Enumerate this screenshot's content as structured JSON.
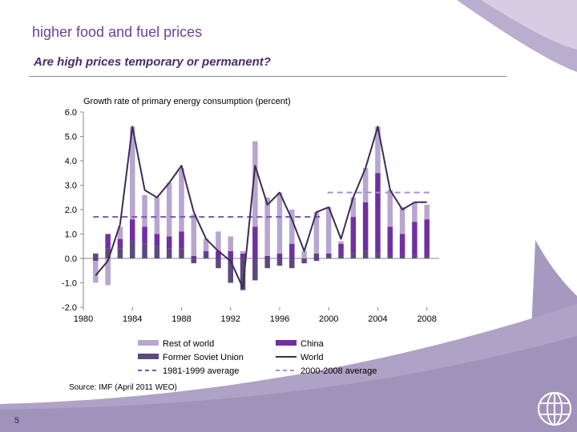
{
  "slide": {
    "title": "higher food and fuel prices",
    "subtitle": "Are high prices temporary or permanent?",
    "source": "Source: IMF (April 2011 WEO)",
    "page_number": "5",
    "logo_icon": "world-bank-globe-icon"
  },
  "colors": {
    "title": "#6e3f97",
    "rest_of_world": "#b7a6cf",
    "china": "#7030a0",
    "former_soviet_union": "#5c4a7a",
    "world": "#3d2b55",
    "avg_1981_1999": "#7b54b0",
    "avg_2000_2008": "#a88fd0",
    "decor": "#a698bf"
  },
  "chart_data": {
    "type": "bar",
    "title": "Growth rate of primary energy consumption (percent)",
    "ylim": [
      -2.0,
      6.0
    ],
    "yticks": [
      "6.0",
      "5.0",
      "4.0",
      "3.0",
      "2.0",
      "1.0",
      "0.0",
      "-1.0",
      "-2.0"
    ],
    "xticks": [
      "1980",
      "1984",
      "1988",
      "1992",
      "1996",
      "2000",
      "2004",
      "2008"
    ],
    "x": [
      1981,
      1982,
      1983,
      1984,
      1985,
      1986,
      1987,
      1988,
      1989,
      1990,
      1991,
      1992,
      1993,
      1994,
      1995,
      1996,
      1997,
      1998,
      1999,
      2000,
      2001,
      2002,
      2003,
      2004,
      2005,
      2006,
      2007,
      2008
    ],
    "series": [
      {
        "name": "Former Soviet Union",
        "kind": "bar",
        "values": [
          0.2,
          0.4,
          0.4,
          0.7,
          0.6,
          0.5,
          0.4,
          0.4,
          -0.2,
          0.2,
          -0.4,
          -1.0,
          -1.3,
          -0.9,
          -0.4,
          -0.3,
          -0.4,
          -0.1,
          0.2,
          0.1,
          0.1,
          0.2,
          0.3,
          0.2,
          0.1,
          0.1,
          0.1,
          0.1
        ]
      },
      {
        "name": "China",
        "kind": "bar",
        "values": [
          -0.1,
          0.6,
          0.4,
          0.9,
          0.7,
          0.5,
          0.5,
          0.7,
          0.1,
          0.1,
          0.3,
          0.3,
          0.2,
          1.3,
          0.1,
          0.2,
          0.6,
          -0.1,
          -0.1,
          0.1,
          0.5,
          1.5,
          2.0,
          3.3,
          1.2,
          0.9,
          1.4,
          1.5
        ]
      },
      {
        "name": "Rest of world",
        "kind": "bar",
        "values": [
          -0.9,
          -1.1,
          0.5,
          3.8,
          1.3,
          1.5,
          2.2,
          2.6,
          1.7,
          0.5,
          0.8,
          0.6,
          0.1,
          3.5,
          2.4,
          2.5,
          1.4,
          0.3,
          1.7,
          1.9,
          0.1,
          0.8,
          1.4,
          1.9,
          1.5,
          1.1,
          0.8,
          0.6
        ]
      },
      {
        "name": "World",
        "kind": "line",
        "values": [
          -0.7,
          -0.1,
          1.4,
          5.4,
          2.8,
          2.5,
          3.1,
          3.8,
          1.9,
          0.8,
          0.3,
          -0.1,
          -1.2,
          3.8,
          2.2,
          2.7,
          1.6,
          0.3,
          1.9,
          2.1,
          0.8,
          2.5,
          3.7,
          5.4,
          2.8,
          2.0,
          2.3,
          2.3
        ]
      },
      {
        "name": "1981-1999 average",
        "kind": "dashed",
        "x_range": [
          1980.8,
          1999.6
        ],
        "value": 1.7
      },
      {
        "name": "2000-2008 average",
        "kind": "dashed",
        "x_range": [
          1999.9,
          2008.2
        ],
        "value": 2.7
      }
    ],
    "legend": [
      {
        "label": "Rest of world",
        "swatch": "bar",
        "color_key": "rest_of_world"
      },
      {
        "label": "China",
        "swatch": "bar",
        "color_key": "china"
      },
      {
        "label": "Former Soviet Union",
        "swatch": "bar",
        "color_key": "former_soviet_union"
      },
      {
        "label": "World",
        "swatch": "line",
        "color_key": "world"
      },
      {
        "label": "1981-1999 average",
        "swatch": "dash",
        "color_key": "avg_1981_1999"
      },
      {
        "label": "2000-2008 average",
        "swatch": "dash",
        "color_key": "avg_2000_2008"
      }
    ],
    "legend_position": "bottom",
    "grid": false
  }
}
